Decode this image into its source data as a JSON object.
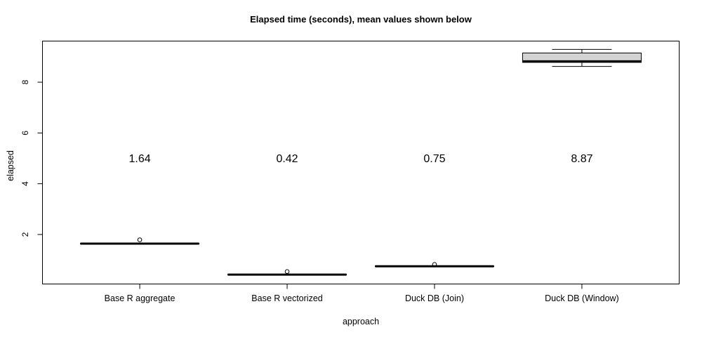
{
  "title": "Elapsed time (seconds), mean values shown below",
  "chart_data": {
    "type": "boxplot",
    "title": "Elapsed time (seconds), mean values shown below",
    "xlabel": "approach",
    "ylabel": "elapsed",
    "categories": [
      "Base R aggregate",
      "Base R vectorized",
      "Duck DB (Join)",
      "Duck DB (Window)"
    ],
    "series": [
      {
        "name": "Base R aggregate",
        "q1": 1.63,
        "median": 1.64,
        "q3": 1.65,
        "whisker_low": 1.63,
        "whisker_high": 1.65,
        "outliers": [
          1.79
        ],
        "mean": 1.64,
        "mean_label": "1.64"
      },
      {
        "name": "Base R vectorized",
        "q1": 0.41,
        "median": 0.42,
        "q3": 0.43,
        "whisker_low": 0.41,
        "whisker_high": 0.43,
        "outliers": [
          0.54
        ],
        "mean": 0.42,
        "mean_label": "0.42"
      },
      {
        "name": "Duck DB (Join)",
        "q1": 0.74,
        "median": 0.75,
        "q3": 0.76,
        "whisker_low": 0.74,
        "whisker_high": 0.76,
        "outliers": [
          0.82
        ],
        "mean": 0.75,
        "mean_label": "0.75"
      },
      {
        "name": "Duck DB (Window)",
        "q1": 8.78,
        "median": 8.82,
        "q3": 9.15,
        "whisker_low": 8.62,
        "whisker_high": 9.29,
        "outliers": [],
        "mean": 8.87,
        "mean_label": "8.87"
      }
    ],
    "yticks": [
      2,
      4,
      6,
      8
    ],
    "ylim": [
      0.05,
      9.62
    ],
    "xlim": [
      0.34,
      4.66
    ],
    "mean_label_y": 5,
    "grid": false,
    "legend": null,
    "box_fill": "#d3d3d3",
    "line_color": "#000000",
    "background": "#ffffff"
  }
}
